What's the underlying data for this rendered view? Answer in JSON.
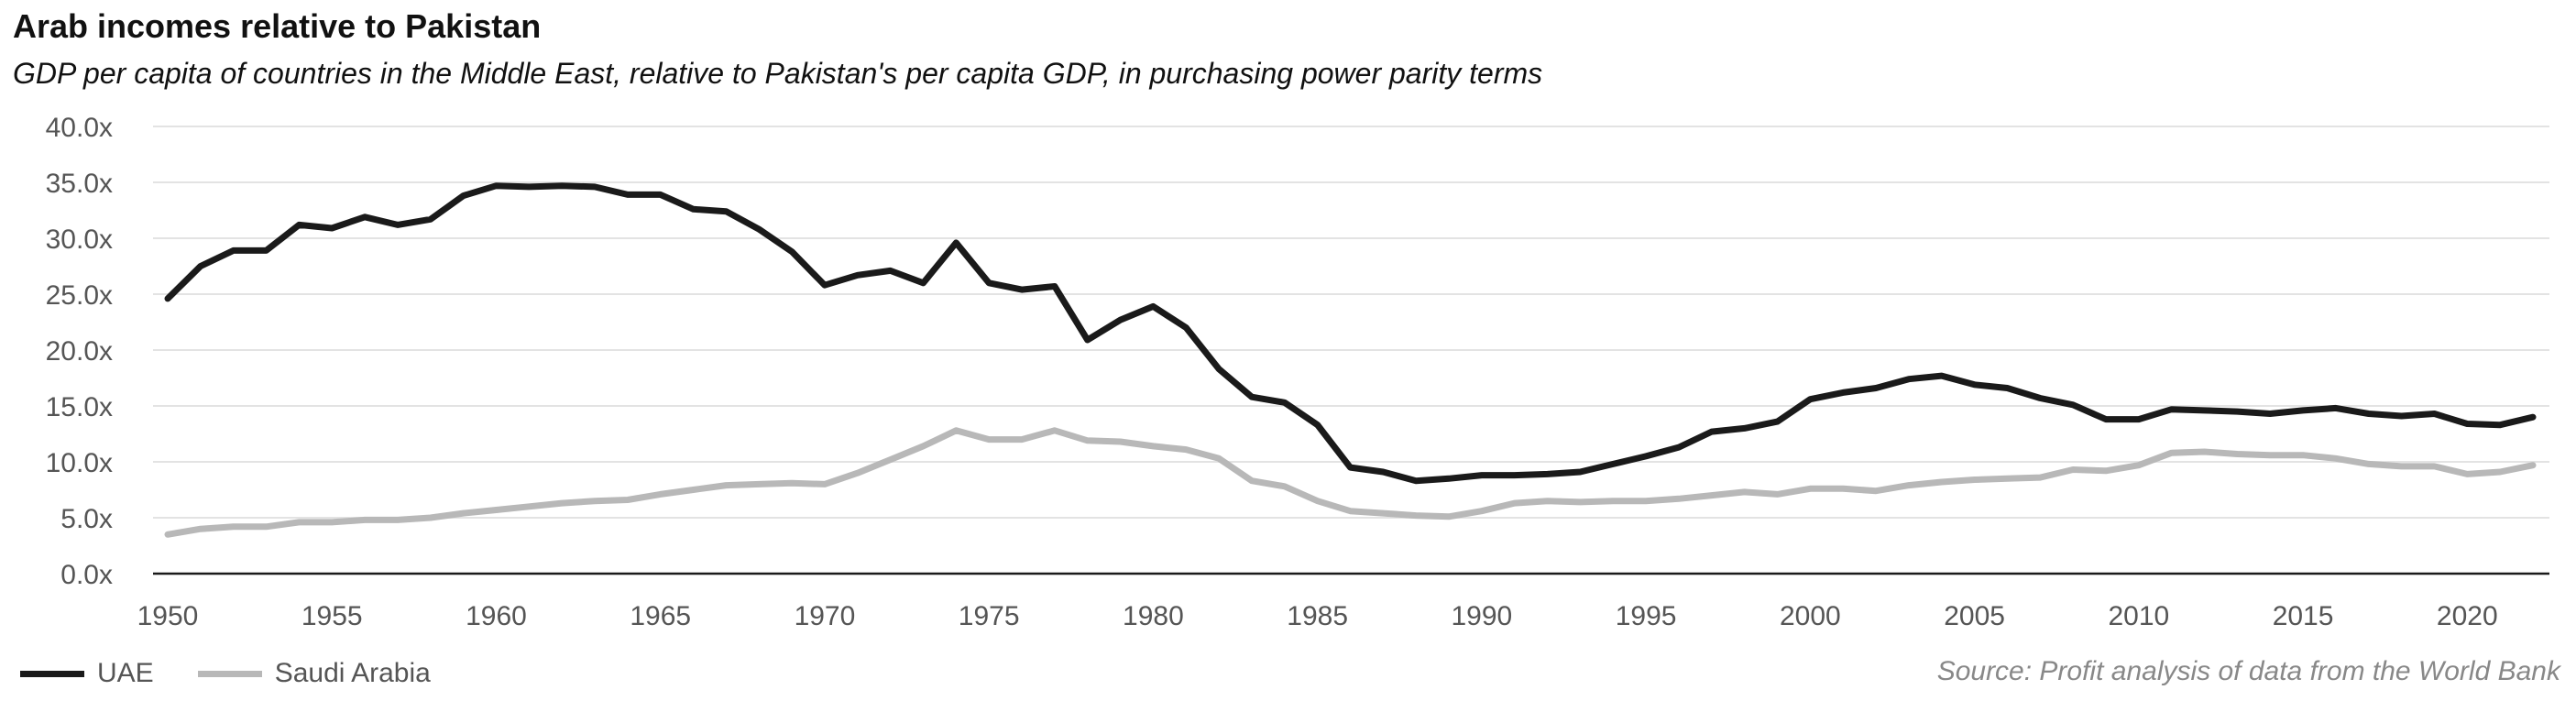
{
  "chart_data": {
    "type": "line",
    "title": "Arab incomes relative to Pakistan",
    "subtitle": "GDP per capita of countries in the Middle East, relative to Pakistan's per capita GDP, in purchasing power parity terms",
    "source": "Source: Profit analysis of data from the World Bank",
    "ylim": [
      0,
      40
    ],
    "xlim": [
      1950,
      2022
    ],
    "y_ticks": [
      "0.0x",
      "5.0x",
      "10.0x",
      "15.0x",
      "20.0x",
      "25.0x",
      "30.0x",
      "35.0x",
      "40.0x"
    ],
    "y_tick_values": [
      0,
      5,
      10,
      15,
      20,
      25,
      30,
      35,
      40
    ],
    "x_ticks": [
      "1950",
      "1955",
      "1960",
      "1965",
      "1970",
      "1975",
      "1980",
      "1985",
      "1990",
      "1995",
      "2000",
      "2005",
      "2010",
      "2015",
      "2020"
    ],
    "x_tick_values": [
      1950,
      1955,
      1960,
      1965,
      1970,
      1975,
      1980,
      1985,
      1990,
      1995,
      2000,
      2005,
      2010,
      2015,
      2020
    ],
    "grid": true,
    "legend_position": "bottom-left",
    "x": [
      1950,
      1951,
      1952,
      1953,
      1954,
      1955,
      1956,
      1957,
      1958,
      1959,
      1960,
      1961,
      1962,
      1963,
      1964,
      1965,
      1966,
      1967,
      1968,
      1969,
      1970,
      1971,
      1972,
      1973,
      1974,
      1975,
      1976,
      1977,
      1978,
      1979,
      1980,
      1981,
      1982,
      1983,
      1984,
      1985,
      1986,
      1987,
      1988,
      1989,
      1990,
      1991,
      1992,
      1993,
      1994,
      1995,
      1996,
      1997,
      1998,
      1999,
      2000,
      2001,
      2002,
      2003,
      2004,
      2005,
      2006,
      2007,
      2008,
      2009,
      2010,
      2011,
      2012,
      2013,
      2014,
      2015,
      2016,
      2017,
      2018,
      2019,
      2020,
      2021,
      2022
    ],
    "series": [
      {
        "name": "UAE",
        "color": "#1a1a1a",
        "values": [
          24.6,
          27.5,
          28.9,
          28.9,
          31.2,
          30.9,
          31.9,
          31.2,
          31.7,
          33.8,
          34.7,
          34.6,
          34.7,
          34.6,
          33.9,
          33.9,
          32.6,
          32.4,
          30.8,
          28.8,
          25.8,
          26.7,
          27.1,
          26.0,
          29.6,
          26.0,
          25.4,
          25.7,
          20.9,
          22.7,
          23.9,
          22.0,
          18.3,
          15.8,
          15.3,
          13.3,
          9.5,
          9.1,
          8.3,
          8.5,
          8.8,
          8.8,
          8.9,
          9.1,
          9.8,
          10.5,
          11.3,
          12.7,
          13.0,
          13.6,
          15.6,
          16.2,
          16.6,
          17.4,
          17.7,
          16.9,
          16.6,
          15.7,
          15.1,
          13.8,
          13.8,
          14.7,
          14.6,
          14.5,
          14.3,
          14.6,
          14.8,
          14.3,
          14.1,
          14.3,
          13.4,
          13.3,
          14.0
        ]
      },
      {
        "name": "Saudi Arabia",
        "color": "#b8b8b8",
        "values": [
          3.5,
          4.0,
          4.2,
          4.2,
          4.6,
          4.6,
          4.8,
          4.8,
          5.0,
          5.4,
          5.7,
          6.0,
          6.3,
          6.5,
          6.6,
          7.1,
          7.5,
          7.9,
          8.0,
          8.1,
          8.0,
          9.0,
          10.2,
          11.4,
          12.8,
          12.0,
          12.0,
          12.8,
          11.9,
          11.8,
          11.4,
          11.1,
          10.3,
          8.3,
          7.8,
          6.5,
          5.6,
          5.4,
          5.2,
          5.1,
          5.6,
          6.3,
          6.5,
          6.4,
          6.5,
          6.5,
          6.7,
          7.0,
          7.3,
          7.1,
          7.6,
          7.6,
          7.4,
          7.9,
          8.2,
          8.4,
          8.5,
          8.6,
          9.3,
          9.2,
          9.7,
          10.8,
          10.9,
          10.7,
          10.6,
          10.6,
          10.3,
          9.8,
          9.6,
          9.6,
          8.9,
          9.1,
          9.7
        ]
      }
    ]
  }
}
